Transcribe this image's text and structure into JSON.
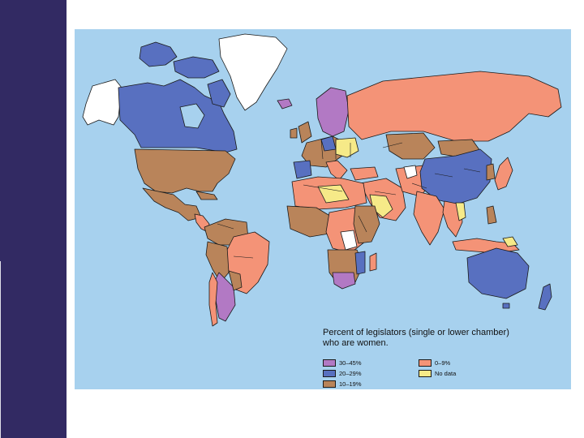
{
  "map": {
    "legend": {
      "title": "Percent of legislators (single or lower chamber)\nwho are women.",
      "items": [
        {
          "label": "30–45%",
          "color": "#b279c4"
        },
        {
          "label": "20–29%",
          "color": "#5870c0"
        },
        {
          "label": "10–19%",
          "color": "#b9845a"
        },
        {
          "label": "0–9%",
          "color": "#f49377"
        },
        {
          "label": "No data",
          "color": "#f6ea88"
        }
      ]
    },
    "colors": {
      "ocean": "#a7d1ee",
      "side_band": "#322a63",
      "no_data_white": "#ffffff"
    }
  }
}
